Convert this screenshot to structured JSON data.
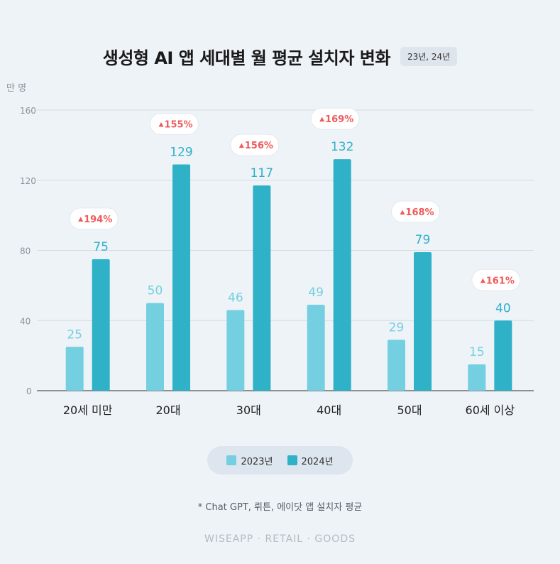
{
  "header": {
    "title": "생성형 AI 앱 세대별 월 평균 설치자 변화",
    "period": "23년, 24년"
  },
  "colors": {
    "series_2023": "#74cfe0",
    "series_2024": "#2fb1c7",
    "change_text": "#ef5a5a"
  },
  "chart_data": {
    "type": "bar",
    "title": "생성형 AI 앱 세대별 월 평균 설치자 변화",
    "ylabel": "만 명",
    "ylim": [
      0,
      160
    ],
    "yticks": [
      0,
      40,
      80,
      120,
      160
    ],
    "categories": [
      "20세 미만",
      "20대",
      "30대",
      "40대",
      "50대",
      "60세 이상"
    ],
    "series": [
      {
        "name": "2023년",
        "values": [
          25,
          50,
          46,
          49,
          29,
          15
        ]
      },
      {
        "name": "2024년",
        "values": [
          75,
          129,
          117,
          132,
          79,
          40
        ]
      }
    ],
    "changes": [
      "194%",
      "155%",
      "156%",
      "169%",
      "168%",
      "161%"
    ],
    "grid": true,
    "legend": "bottom"
  },
  "legend": {
    "items": [
      "2023년",
      "2024년"
    ]
  },
  "footnote": "* Chat GPT, 뤼튼, 에이닷 앱 설치자 평균",
  "brand": "WISEAPP · RETAIL · GOODS"
}
